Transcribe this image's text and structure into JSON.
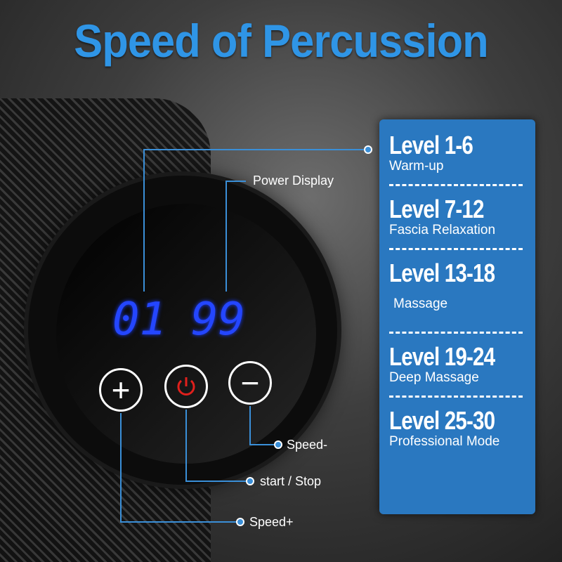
{
  "title": "Speed of Percussion",
  "display": {
    "left_digits": "01",
    "right_digits": "99"
  },
  "buttons": [
    {
      "icon": "plus-icon",
      "symbol": "+"
    },
    {
      "icon": "power-icon",
      "color": "#e0201c"
    },
    {
      "icon": "minus-icon",
      "symbol": "−"
    }
  ],
  "callouts": {
    "power_display": "Power Display",
    "speed_minus": "Speed-",
    "start_stop": "start / Stop",
    "speed_plus": "Speed+"
  },
  "levels": [
    {
      "range": "Level 1-6",
      "mode": "Warm-up"
    },
    {
      "range": "Level 7-12",
      "mode": "Fascia Relaxation"
    },
    {
      "range": "Level 13-18",
      "mode": "Massage"
    },
    {
      "range": "Level 19-24",
      "mode": "Deep Massage"
    },
    {
      "range": "Level 25-30",
      "mode": "Professional Mode"
    }
  ],
  "colors": {
    "title": "#2f95e6",
    "panel": "#2a78c0",
    "digits": "#2446ff",
    "lines": "#3a8fd8"
  }
}
